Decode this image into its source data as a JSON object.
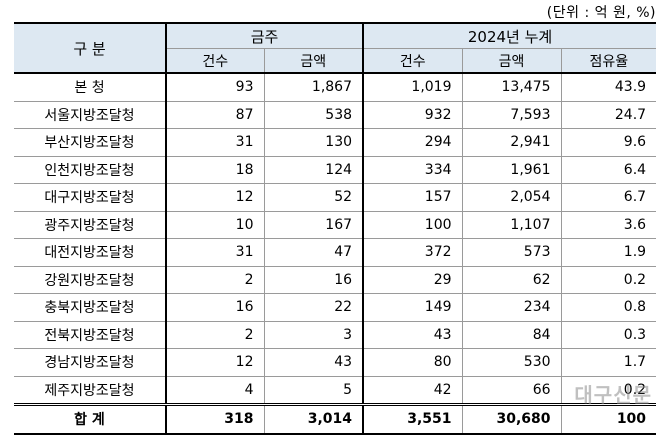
{
  "unit_note": "(단위 : 억 원, %)",
  "header": {
    "category": "구 분",
    "group_weekly": "금주",
    "group_cumulative": "2024년 누계",
    "sub": {
      "count": "건수",
      "amount": "금액",
      "count2": "건수",
      "amount2": "금액",
      "share": "점유율"
    }
  },
  "rows": [
    {
      "name": "본  청",
      "w_count": "93",
      "w_amount": "1,867",
      "c_count": "1,019",
      "c_amount": "13,475",
      "share": "43.9"
    },
    {
      "name": "서울지방조달청",
      "w_count": "87",
      "w_amount": "538",
      "c_count": "932",
      "c_amount": "7,593",
      "share": "24.7"
    },
    {
      "name": "부산지방조달청",
      "w_count": "31",
      "w_amount": "130",
      "c_count": "294",
      "c_amount": "2,941",
      "share": "9.6"
    },
    {
      "name": "인천지방조달청",
      "w_count": "18",
      "w_amount": "124",
      "c_count": "334",
      "c_amount": "1,961",
      "share": "6.4"
    },
    {
      "name": "대구지방조달청",
      "w_count": "12",
      "w_amount": "52",
      "c_count": "157",
      "c_amount": "2,054",
      "share": "6.7"
    },
    {
      "name": "광주지방조달청",
      "w_count": "10",
      "w_amount": "167",
      "c_count": "100",
      "c_amount": "1,107",
      "share": "3.6"
    },
    {
      "name": "대전지방조달청",
      "w_count": "31",
      "w_amount": "47",
      "c_count": "372",
      "c_amount": "573",
      "share": "1.9"
    },
    {
      "name": "강원지방조달청",
      "w_count": "2",
      "w_amount": "16",
      "c_count": "29",
      "c_amount": "62",
      "share": "0.2"
    },
    {
      "name": "충북지방조달청",
      "w_count": "16",
      "w_amount": "22",
      "c_count": "149",
      "c_amount": "234",
      "share": "0.8"
    },
    {
      "name": "전북지방조달청",
      "w_count": "2",
      "w_amount": "3",
      "c_count": "43",
      "c_amount": "84",
      "share": "0.3"
    },
    {
      "name": "경남지방조달청",
      "w_count": "12",
      "w_amount": "43",
      "c_count": "80",
      "c_amount": "530",
      "share": "1.7"
    },
    {
      "name": "제주지방조달청",
      "w_count": "4",
      "w_amount": "5",
      "c_count": "42",
      "c_amount": "66",
      "share": "0.2"
    }
  ],
  "total": {
    "name": "합  계",
    "w_count": "318",
    "w_amount": "3,014",
    "c_count": "3,551",
    "c_amount": "30,680",
    "share": "100"
  },
  "watermark": "대구신문"
}
